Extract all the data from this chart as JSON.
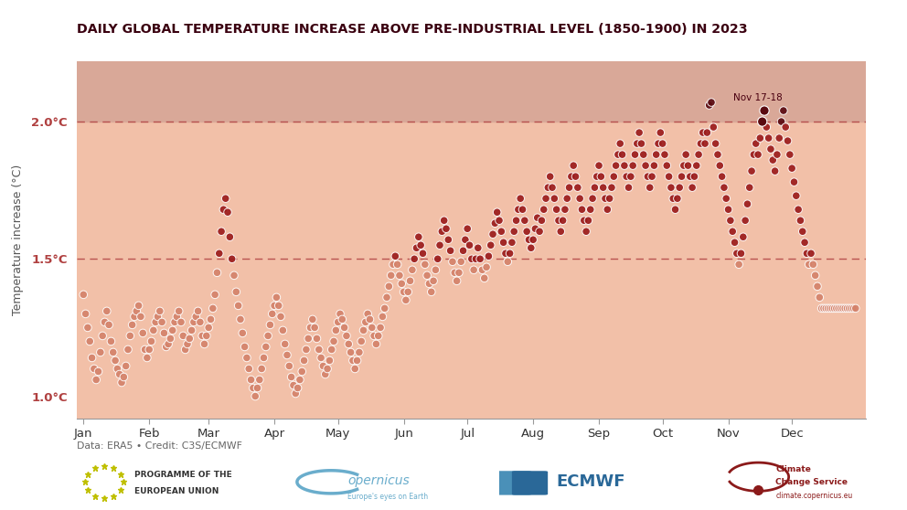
{
  "title": "DAILY GLOBAL TEMPERATURE INCREASE ABOVE PRE-INDUSTRIAL LEVEL (1850-1900) IN 2023",
  "ylabel": "Temperature increase (°C)",
  "credit": "Data: ERA5 • Credit: C3S/ECMWF",
  "plot_bg": "#f2c0a8",
  "above_2_bg": "#d9a898",
  "fig_bg": "#ffffff",
  "line_color": "#b04040",
  "dot_color_low": "#d4826a",
  "dot_color_mid": "#9b1c1c",
  "dot_color_high": "#5a0a10",
  "annotation_color": "#4a0010",
  "title_color": "#3a0010",
  "ylabel_color": "#555555",
  "months": [
    "Jan",
    "Feb",
    "Mar",
    "Apr",
    "May",
    "Jun",
    "Jul",
    "Aug",
    "Sep",
    "Oct",
    "Nov",
    "Dec"
  ],
  "days_in_month": [
    31,
    28,
    31,
    30,
    31,
    30,
    31,
    31,
    30,
    31,
    30,
    31
  ],
  "temps": [
    1.37,
    1.3,
    1.25,
    1.2,
    1.14,
    1.1,
    1.06,
    1.09,
    1.16,
    1.22,
    1.27,
    1.31,
    1.26,
    1.2,
    1.16,
    1.13,
    1.1,
    1.08,
    1.05,
    1.07,
    1.11,
    1.17,
    1.22,
    1.26,
    1.29,
    1.31,
    1.33,
    1.29,
    1.23,
    1.17,
    1.14,
    1.17,
    1.2,
    1.24,
    1.27,
    1.29,
    1.31,
    1.27,
    1.23,
    1.18,
    1.19,
    1.21,
    1.24,
    1.27,
    1.29,
    1.31,
    1.27,
    1.22,
    1.17,
    1.19,
    1.21,
    1.24,
    1.27,
    1.29,
    1.31,
    1.27,
    1.22,
    1.19,
    1.22,
    1.25,
    1.28,
    1.32,
    1.37,
    1.45,
    1.52,
    1.6,
    1.68,
    1.72,
    1.67,
    1.58,
    1.5,
    1.44,
    1.38,
    1.33,
    1.28,
    1.23,
    1.18,
    1.14,
    1.1,
    1.06,
    1.03,
    1.0,
    1.03,
    1.06,
    1.1,
    1.14,
    1.18,
    1.22,
    1.26,
    1.3,
    1.33,
    1.36,
    1.33,
    1.29,
    1.24,
    1.19,
    1.15,
    1.11,
    1.07,
    1.04,
    1.01,
    1.03,
    1.06,
    1.09,
    1.13,
    1.17,
    1.21,
    1.25,
    1.28,
    1.25,
    1.21,
    1.17,
    1.14,
    1.11,
    1.08,
    1.1,
    1.13,
    1.17,
    1.2,
    1.24,
    1.27,
    1.3,
    1.28,
    1.25,
    1.22,
    1.19,
    1.16,
    1.13,
    1.1,
    1.13,
    1.16,
    1.2,
    1.24,
    1.27,
    1.3,
    1.28,
    1.25,
    1.22,
    1.19,
    1.22,
    1.25,
    1.29,
    1.32,
    1.36,
    1.4,
    1.44,
    1.48,
    1.51,
    1.48,
    1.44,
    1.41,
    1.38,
    1.35,
    1.38,
    1.42,
    1.46,
    1.5,
    1.54,
    1.58,
    1.55,
    1.52,
    1.48,
    1.44,
    1.41,
    1.38,
    1.42,
    1.46,
    1.5,
    1.55,
    1.6,
    1.64,
    1.61,
    1.57,
    1.53,
    1.49,
    1.45,
    1.42,
    1.45,
    1.49,
    1.53,
    1.57,
    1.61,
    1.55,
    1.5,
    1.46,
    1.5,
    1.54,
    1.5,
    1.46,
    1.43,
    1.47,
    1.51,
    1.55,
    1.59,
    1.63,
    1.67,
    1.64,
    1.6,
    1.56,
    1.52,
    1.49,
    1.52,
    1.56,
    1.6,
    1.64,
    1.68,
    1.72,
    1.68,
    1.64,
    1.6,
    1.57,
    1.54,
    1.57,
    1.61,
    1.65,
    1.6,
    1.64,
    1.68,
    1.72,
    1.76,
    1.8,
    1.76,
    1.72,
    1.68,
    1.64,
    1.6,
    1.64,
    1.68,
    1.72,
    1.76,
    1.8,
    1.84,
    1.8,
    1.76,
    1.72,
    1.68,
    1.64,
    1.6,
    1.64,
    1.68,
    1.72,
    1.76,
    1.8,
    1.84,
    1.8,
    1.76,
    1.72,
    1.68,
    1.72,
    1.76,
    1.8,
    1.84,
    1.88,
    1.92,
    1.88,
    1.84,
    1.8,
    1.76,
    1.8,
    1.84,
    1.88,
    1.92,
    1.96,
    1.92,
    1.88,
    1.84,
    1.8,
    1.76,
    1.8,
    1.84,
    1.88,
    1.92,
    1.96,
    1.92,
    1.88,
    1.84,
    1.8,
    1.76,
    1.72,
    1.68,
    1.72,
    1.76,
    1.8,
    1.84,
    1.88,
    1.84,
    1.8,
    1.76,
    1.8,
    1.84,
    1.88,
    1.92,
    1.96,
    1.92,
    1.96,
    2.06,
    2.07,
    1.98,
    1.92,
    1.88,
    1.84,
    1.8,
    1.76,
    1.72,
    1.68,
    1.64,
    1.6,
    1.56,
    1.52,
    1.48,
    1.52,
    1.58,
    1.64,
    1.7,
    1.76,
    1.82,
    1.88,
    1.92,
    1.88,
    1.94,
    2.0,
    2.04,
    1.98,
    1.94,
    1.9,
    1.86,
    1.82,
    1.88,
    1.94,
    2.0,
    2.04,
    1.98,
    1.93,
    1.88,
    1.83,
    1.78,
    1.73,
    1.68,
    1.64,
    1.6,
    1.56,
    1.52,
    1.48,
    1.52,
    1.48,
    1.44,
    1.4,
    1.36,
    1.32
  ]
}
